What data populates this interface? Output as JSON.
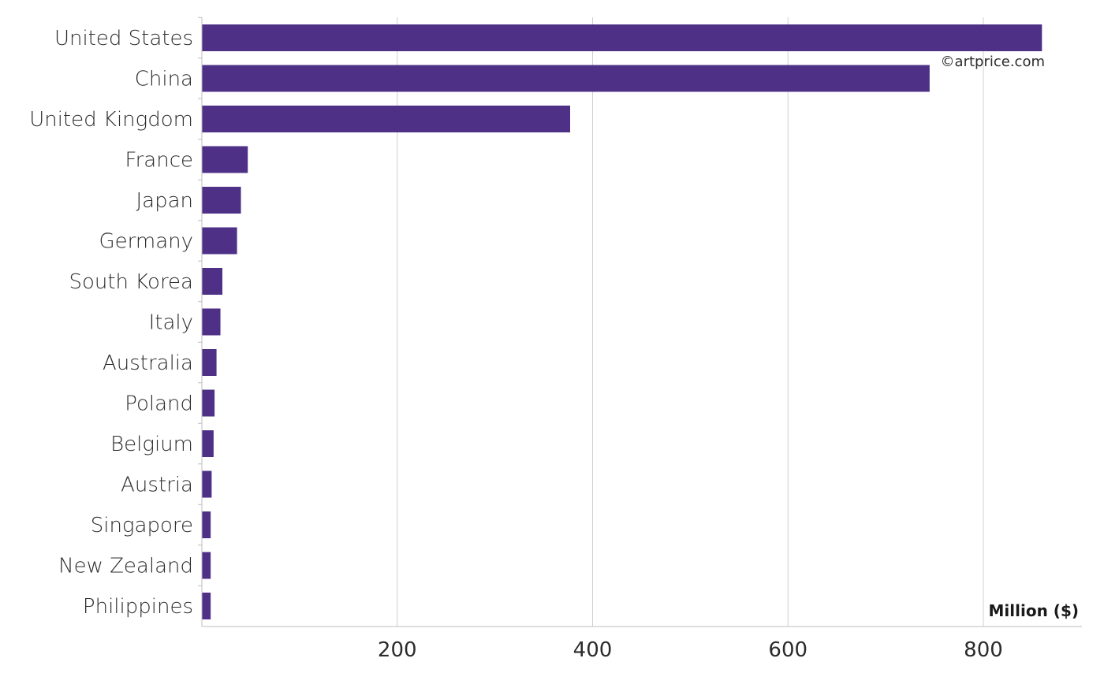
{
  "chart_data": {
    "type": "bar",
    "orientation": "horizontal",
    "categories": [
      "United States",
      "China",
      "United Kingdom",
      "France",
      "Japan",
      "Germany",
      "South Korea",
      "Italy",
      "Australia",
      "Poland",
      "Belgium",
      "Austria",
      "Singapore",
      "New Zealand",
      "Philippines"
    ],
    "values": [
      860,
      745,
      377,
      47,
      40,
      36,
      21,
      19,
      15,
      13,
      12,
      10,
      9,
      9,
      9
    ],
    "xlim": [
      0,
      900
    ],
    "xticks": [
      200,
      400,
      600,
      800
    ],
    "xlabel": "Million ($)",
    "grid": true,
    "bar_color": "#4e3187",
    "credit": "©artprice.com"
  }
}
